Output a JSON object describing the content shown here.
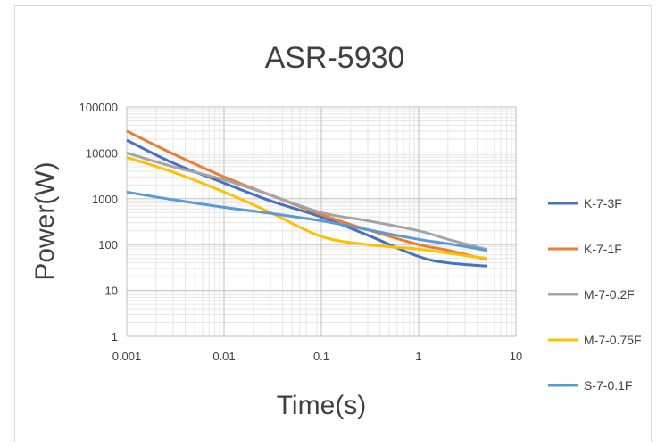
{
  "chart_data": {
    "type": "line",
    "title": "ASR-5930",
    "xlabel": "Time(s)",
    "ylabel": "Power(W)",
    "x_scale": "log",
    "y_scale": "log",
    "xlim": [
      0.001,
      10
    ],
    "ylim": [
      1,
      100000
    ],
    "x_ticks": [
      "0.001",
      "0.01",
      "0.1",
      "1",
      "10"
    ],
    "y_ticks": [
      "1",
      "10",
      "100",
      "1000",
      "10000",
      "100000"
    ],
    "grid": true,
    "legend_position": "right",
    "series": [
      {
        "name": "K-7-3F",
        "color": "#4472C4",
        "points": [
          [
            0.001,
            19000
          ],
          [
            0.003,
            6000
          ],
          [
            0.01,
            2200
          ],
          [
            0.03,
            900
          ],
          [
            0.1,
            400
          ],
          [
            0.3,
            160
          ],
          [
            1,
            55
          ],
          [
            2,
            40
          ],
          [
            5,
            34
          ]
        ]
      },
      {
        "name": "K-7-1F",
        "color": "#ED7D31",
        "points": [
          [
            0.001,
            30000
          ],
          [
            0.003,
            9500
          ],
          [
            0.01,
            3000
          ],
          [
            0.03,
            1200
          ],
          [
            0.1,
            450
          ],
          [
            0.3,
            210
          ],
          [
            1,
            100
          ],
          [
            2,
            75
          ],
          [
            5,
            47
          ]
        ]
      },
      {
        "name": "M-7-0.2F",
        "color": "#A5A5A5",
        "points": [
          [
            0.001,
            10000
          ],
          [
            0.003,
            5000
          ],
          [
            0.01,
            2600
          ],
          [
            0.03,
            1200
          ],
          [
            0.1,
            500
          ],
          [
            0.3,
            330
          ],
          [
            1,
            200
          ],
          [
            2,
            130
          ],
          [
            5,
            78
          ]
        ]
      },
      {
        "name": "M-7-0.75F",
        "color": "#FFC000",
        "points": [
          [
            0.001,
            8000
          ],
          [
            0.003,
            3800
          ],
          [
            0.01,
            1400
          ],
          [
            0.03,
            500
          ],
          [
            0.1,
            150
          ],
          [
            0.3,
            100
          ],
          [
            1,
            80
          ],
          [
            2,
            65
          ],
          [
            5,
            50
          ]
        ]
      },
      {
        "name": "S-7-0.1F",
        "color": "#5B9BD5",
        "points": [
          [
            0.001,
            1400
          ],
          [
            0.003,
            950
          ],
          [
            0.01,
            650
          ],
          [
            0.03,
            480
          ],
          [
            0.1,
            330
          ],
          [
            0.3,
            210
          ],
          [
            1,
            130
          ],
          [
            2,
            105
          ],
          [
            5,
            75
          ]
        ]
      }
    ]
  }
}
